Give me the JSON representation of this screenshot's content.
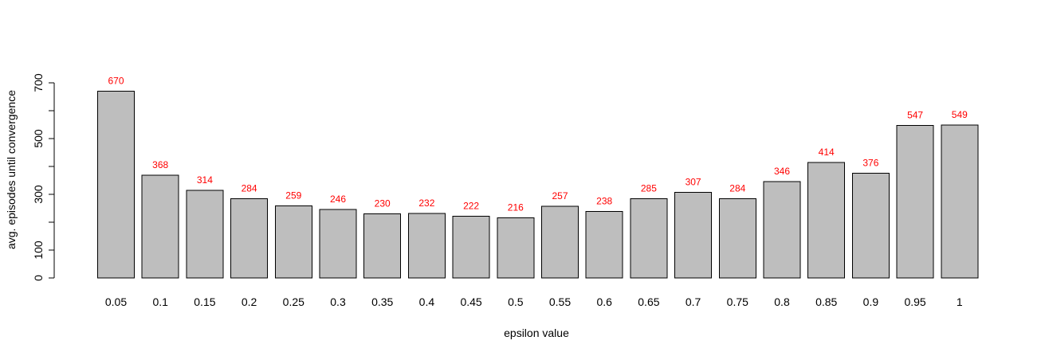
{
  "chart_data": {
    "type": "bar",
    "title": "",
    "xlabel": "epsilon value",
    "ylabel": "avg. episodes until convergence",
    "categories": [
      "0.05",
      "0.1",
      "0.15",
      "0.2",
      "0.25",
      "0.3",
      "0.35",
      "0.4",
      "0.45",
      "0.5",
      "0.55",
      "0.6",
      "0.65",
      "0.7",
      "0.75",
      "0.8",
      "0.85",
      "0.9",
      "0.95",
      "1"
    ],
    "values": [
      670,
      368,
      314,
      284,
      259,
      246,
      230,
      232,
      222,
      216,
      257,
      238,
      285,
      307,
      284,
      346,
      414,
      376,
      547,
      549
    ],
    "data_labels": [
      "670",
      "368",
      "314",
      "284",
      "259",
      "246",
      "230",
      "232",
      "222",
      "216",
      "257",
      "238",
      "285",
      "307",
      "284",
      "346",
      "414",
      "376",
      "547",
      "549"
    ],
    "ylim": [
      0,
      700
    ],
    "y_ticks": [
      0,
      100,
      200,
      300,
      400,
      500,
      600,
      700
    ],
    "y_tick_labels": [
      "0",
      "100",
      "",
      "300",
      "",
      "500",
      "",
      "700"
    ],
    "bar_color": "#bebebe",
    "bar_border_color": "#000000",
    "label_color": "#ff0000",
    "grid": false,
    "legend": "none"
  }
}
